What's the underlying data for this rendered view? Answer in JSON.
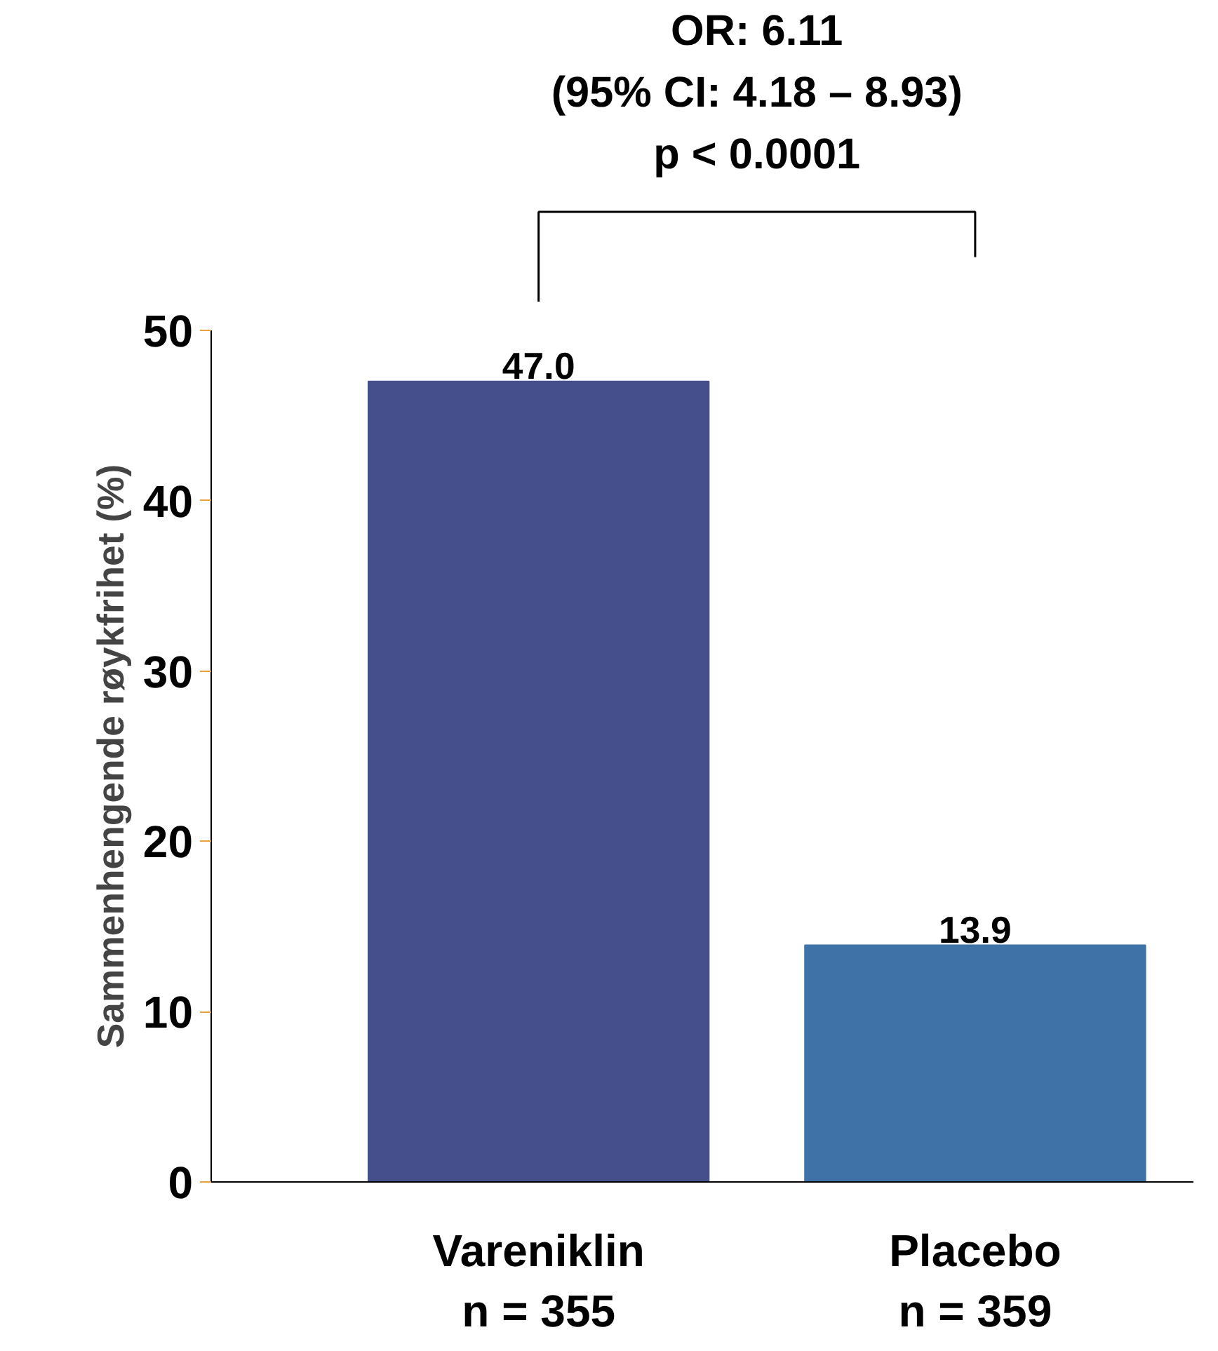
{
  "chart_data": {
    "type": "bar",
    "ylabel": "Sammenhengende røykfrihet (%)",
    "categories": [
      "Vareniklin\nn = 355",
      "Placebo\nn = 359"
    ],
    "values": [
      47.0,
      13.9
    ],
    "value_labels": [
      "47.0",
      "13.9"
    ],
    "colors": [
      "#454f8c",
      "#3f73a8"
    ],
    "ylim": [
      0,
      50
    ],
    "yticks": [
      0,
      10,
      20,
      30,
      40,
      50
    ],
    "grid": false,
    "annotations": [
      "OR: 6.11\n(95% CI: 4.18 – 8.93)\np < 0.0001"
    ]
  }
}
